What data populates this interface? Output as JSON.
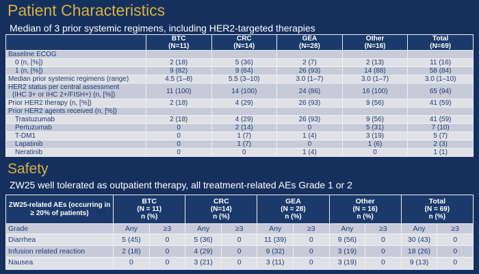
{
  "colors": {
    "background_navy": "#16305e",
    "accent_gold": "#d9b13e",
    "header_cell_navy": "#1b3a6b",
    "row_light": "#dfe1e7",
    "row_dark": "#c7cbd9",
    "body_text_navy": "#1e3a6e",
    "border_white": "#eef0f6"
  },
  "patient_characteristics": {
    "title": "Patient Characteristics",
    "subtitle": "Median of 3 prior systemic regimens, including HER2-targeted therapies",
    "table": {
      "columns": [
        {
          "label": "BTC",
          "n": "(N=11)"
        },
        {
          "label": "CRC",
          "n": "(N=14)"
        },
        {
          "label": "GEA",
          "n": "(N=28)"
        },
        {
          "label": "Other",
          "n": "(N=16)"
        },
        {
          "label": "Total",
          "n": "(N=69)"
        }
      ],
      "rows": [
        {
          "label": "Baseline ECOG",
          "label2": "",
          "indent": false,
          "shade": "dark",
          "values": [
            "",
            "",
            "",
            "",
            ""
          ]
        },
        {
          "label": "0 (n, [%])",
          "label2": "",
          "indent": true,
          "shade": "light",
          "values": [
            "2 (18)",
            "5 (36)",
            "2 (7)",
            "2 (13)",
            "11 (16)"
          ]
        },
        {
          "label": "1 (n, [%])",
          "label2": "",
          "indent": true,
          "shade": "dark",
          "values": [
            "9 (82)",
            "9 (64)",
            "26 (93)",
            "14 (88)",
            "58 (84)"
          ]
        },
        {
          "label": "Median prior systemic regimens (range)",
          "label2": "",
          "indent": false,
          "shade": "light",
          "values": [
            "4.5 (1–8)",
            "5.5 (3–10)",
            "3.0 (1–7)",
            "3.0 (1–7)",
            "3.0 (1–10)"
          ]
        },
        {
          "label": "HER2 status per central assessment",
          "label2": "(IHC 3+ or IHC 2+/FISH+) (n, [%])",
          "indent": false,
          "shade": "dark",
          "values": [
            "11 (100)",
            "14 (100)",
            "24 (86)",
            "16 (100)",
            "65 (94)"
          ]
        },
        {
          "label": "Prior HER2 therapy (n, [%])",
          "label2": "",
          "indent": false,
          "shade": "light",
          "values": [
            "2 (18)",
            "4 (29)",
            "26 (93)",
            "9 (56)",
            "41 (59)"
          ]
        },
        {
          "label": "Prior HER2 agents received (n, [%])",
          "label2": "",
          "indent": false,
          "shade": "dark",
          "values": [
            "",
            "",
            "",
            "",
            ""
          ]
        },
        {
          "label": "Trastuzumab",
          "label2": "",
          "indent": true,
          "shade": "light",
          "values": [
            "2 (18)",
            "4 (29)",
            "26 (93)",
            "9 (56)",
            "41 (59)"
          ]
        },
        {
          "label": "Pertuzumab",
          "label2": "",
          "indent": true,
          "shade": "dark",
          "values": [
            "0",
            "2 (14)",
            "0",
            "5 (31)",
            "7 (10)"
          ]
        },
        {
          "label": "T-DM1",
          "label2": "",
          "indent": true,
          "shade": "light",
          "values": [
            "0",
            "1 (7)",
            "1 (4)",
            "3 (19)",
            "5 (7)"
          ]
        },
        {
          "label": "Lapatinib",
          "label2": "",
          "indent": true,
          "shade": "dark",
          "values": [
            "0",
            "1 (7)",
            "0",
            "1 (6)",
            "2 (3)"
          ]
        },
        {
          "label": "Neratinib",
          "label2": "",
          "indent": true,
          "shade": "light",
          "values": [
            "0",
            "0",
            "1 (4)",
            "0",
            "1 (1)"
          ]
        }
      ]
    }
  },
  "safety": {
    "title": "Safety",
    "subtitle": "ZW25 well tolerated as outpatient therapy, all treatment-related AEs Grade 1 or 2",
    "table": {
      "corner": "ZW25-related AEs (occurring in ≥ 20% of patients)",
      "groups": [
        {
          "label": "BTC",
          "n": "(N = 11)",
          "unit": "n (%)"
        },
        {
          "label": "CRC",
          "n": "(N=14)",
          "unit": "n (%)"
        },
        {
          "label": "GEA",
          "n": "(N = 28)",
          "unit": "n (%)"
        },
        {
          "label": "Other",
          "n": "(N = 16)",
          "unit": "n (%)"
        },
        {
          "label": "Total",
          "n": "(N = 69)",
          "unit": "n (%)"
        }
      ],
      "grade_label": "Grade",
      "sub_any": "Any",
      "sub_ge3": "≥3",
      "rows": [
        {
          "label": "Diarrhea",
          "shade": "light",
          "values": [
            "5 (45)",
            "0",
            "5 (36)",
            "0",
            "11 (39)",
            "0",
            "9 (56)",
            "0",
            "30 (43)",
            "0"
          ]
        },
        {
          "label": "Infusion related reaction",
          "shade": "dark",
          "values": [
            "2 (18)",
            "0",
            "4 (29)",
            "0",
            "9 (32)",
            "0",
            "3 (19)",
            "0",
            "18 (26)",
            "0"
          ]
        },
        {
          "label": "Nausea",
          "shade": "light",
          "values": [
            "0",
            "0",
            "3 (21)",
            "0",
            "3 (11)",
            "0",
            "3 (19)",
            "0",
            "9 (13)",
            "0"
          ]
        }
      ]
    }
  }
}
